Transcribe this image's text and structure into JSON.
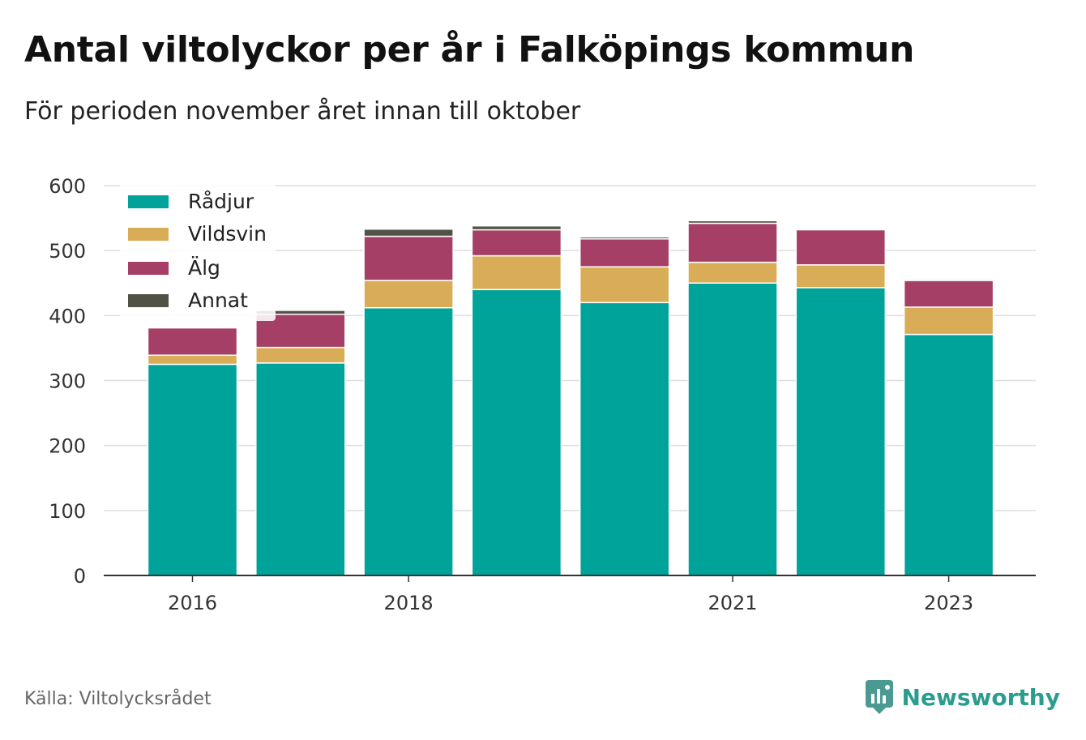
{
  "title": "Antal viltolyckor per år i Falköpings kommun",
  "subtitle": "För perioden november året innan till oktober",
  "source": "Källa: Viltolycksrådet",
  "brand": {
    "name": "Newsworthy",
    "icon": "newsworthy-logo-icon",
    "color": "#2a9d8f"
  },
  "chart_data": {
    "type": "bar",
    "stacked": true,
    "categories": [
      "2016",
      "2017",
      "2018",
      "2019",
      "2020",
      "2021",
      "2022",
      "2023"
    ],
    "x_tick_labels": [
      "2016",
      "",
      "2018",
      "",
      "",
      "2021",
      "",
      "2023"
    ],
    "ylim": [
      0,
      600
    ],
    "y_ticks": [
      0,
      100,
      200,
      300,
      400,
      500,
      600
    ],
    "grid": true,
    "legend_position": "top-left",
    "series": [
      {
        "name": "Rådjur",
        "color": "#00a39a",
        "values": [
          325,
          327,
          412,
          440,
          420,
          450,
          443,
          371
        ]
      },
      {
        "name": "Vildsvin",
        "color": "#d9ad57",
        "values": [
          14,
          24,
          42,
          52,
          55,
          32,
          35,
          42
        ]
      },
      {
        "name": "Älg",
        "color": "#a63f66",
        "values": [
          42,
          51,
          68,
          40,
          43,
          60,
          54,
          41
        ]
      },
      {
        "name": "Annat",
        "color": "#4f5244",
        "values": [
          0,
          6,
          11,
          6,
          3,
          4,
          0,
          2
        ]
      }
    ]
  }
}
